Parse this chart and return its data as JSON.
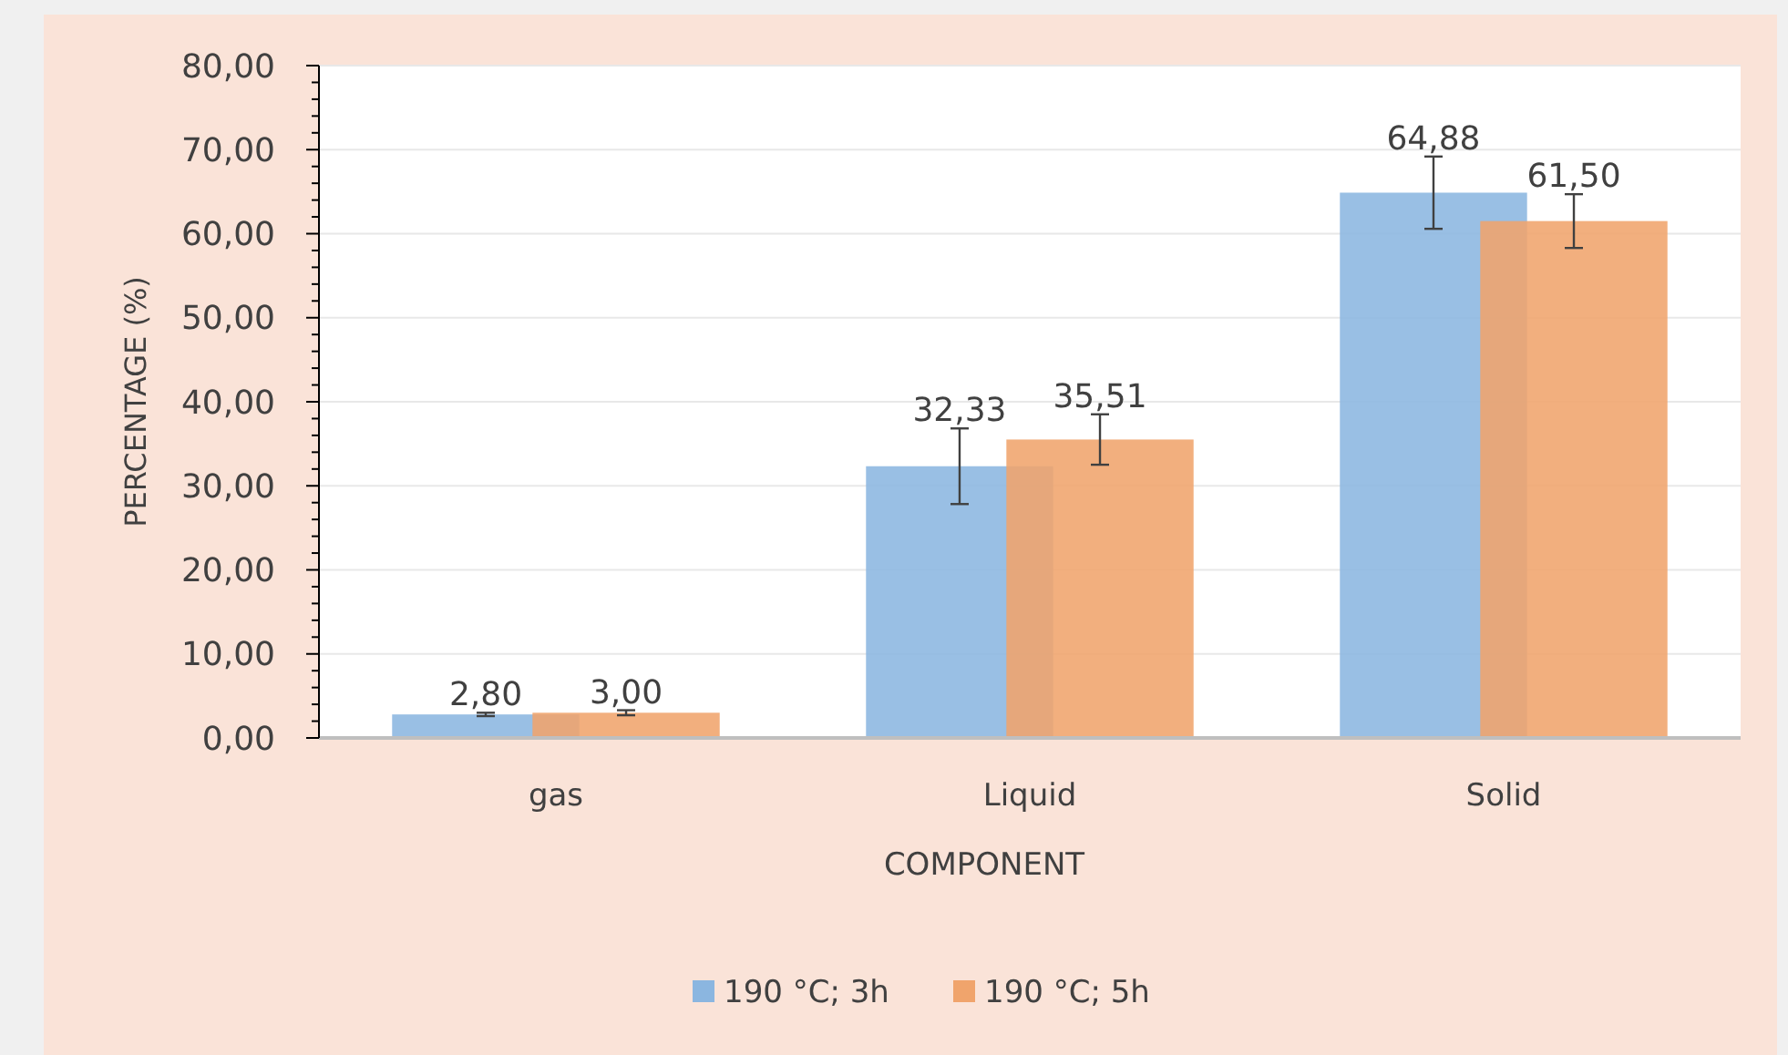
{
  "chart_data": {
    "type": "bar",
    "xlabel": "COMPONENT",
    "ylabel": "PERCENTAGE (%)",
    "categories": [
      "gas",
      "Liquid",
      "Solid"
    ],
    "series": [
      {
        "name": "190 °C; 3h",
        "color": "#8bb6e0",
        "values": [
          2.8,
          32.33,
          64.88
        ],
        "errors": [
          0.2,
          4.5,
          4.3
        ],
        "value_labels": [
          "2,80",
          "32,33",
          "64,88"
        ]
      },
      {
        "name": "190 °C; 5h",
        "color": "#f0a46c",
        "values": [
          3.0,
          35.51,
          61.5
        ],
        "errors": [
          0.3,
          3.0,
          3.2
        ],
        "value_labels": [
          "3,00",
          "35,51",
          "61,50"
        ]
      }
    ],
    "ylim": [
      0,
      80
    ],
    "yticks": [
      {
        "value": 0,
        "label": "0,00"
      },
      {
        "value": 10,
        "label": "10,00"
      },
      {
        "value": 20,
        "label": "20,00"
      },
      {
        "value": 30,
        "label": "30,00"
      },
      {
        "value": 40,
        "label": "40,00"
      },
      {
        "value": 50,
        "label": "50,00"
      },
      {
        "value": 60,
        "label": "60,00"
      },
      {
        "value": 70,
        "label": "70,00"
      },
      {
        "value": 80,
        "label": "80,00"
      }
    ],
    "grid": "y",
    "legend": "bottom"
  }
}
